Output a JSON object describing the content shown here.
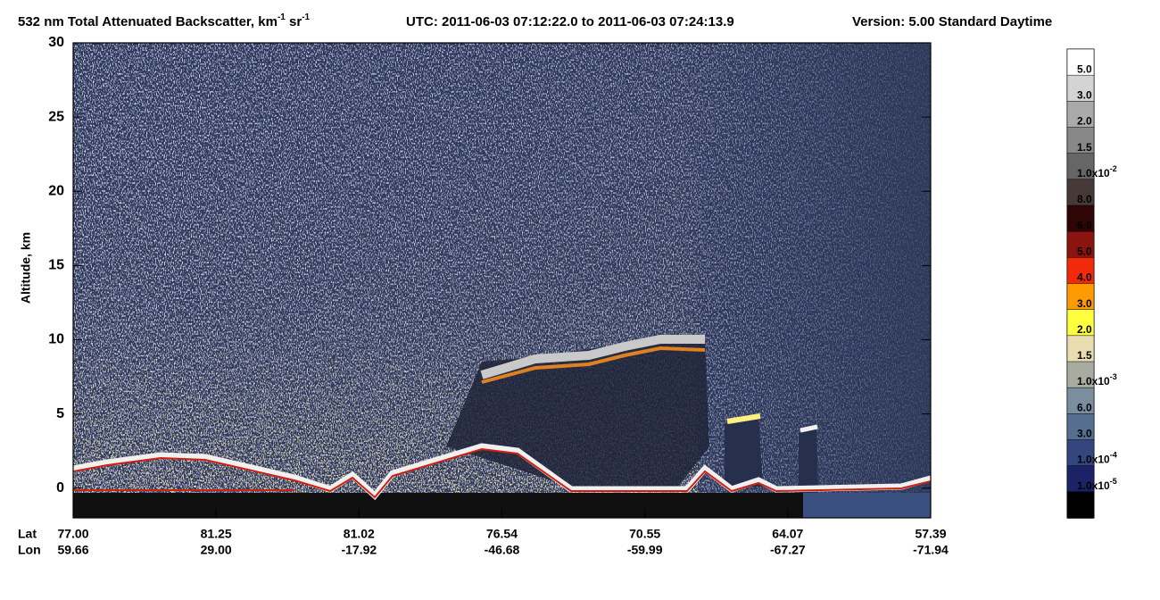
{
  "chart_data": {
    "type": "heatmap",
    "title": [
      "532 nm Total Attenuated Backscatter, km",
      "-1",
      " sr",
      "-1"
    ],
    "utc": "UTC:  2011-06-03 07:12:22.0  to  2011-06-03 07:24:13.9",
    "version": "Version: 5.00  Standard  Daytime",
    "ylabel": "Altitude, km",
    "ylim": [
      -2,
      30
    ],
    "yticks": [
      0,
      5,
      10,
      15,
      20,
      25,
      30
    ],
    "x_rows": [
      {
        "label": "Lat",
        "values": [
          "77.00",
          "81.25",
          "81.02",
          "76.54",
          "70.55",
          "64.07",
          "57.39"
        ]
      },
      {
        "label": "Lon",
        "values": [
          "59.66",
          "29.00",
          "-17.92",
          "-46.68",
          "-59.99",
          "-67.27",
          "-71.94"
        ]
      }
    ],
    "colorbar": {
      "colors": [
        "#ffffff",
        "#d4d4d4",
        "#aaaaaa",
        "#888888",
        "#666666",
        "#463a38",
        "#300505",
        "#8a1410",
        "#f02a0a",
        "#ff9a00",
        "#ffff40",
        "#e8dcb0",
        "#a8aca0",
        "#7a8ea0",
        "#566e90",
        "#34467e",
        "#1c2266",
        "#000000"
      ],
      "labels": [
        "5.0",
        "3.0",
        "2.0",
        "1.5",
        [
          "1.0x10",
          "-2"
        ],
        "8.0",
        "6.0",
        "5.0",
        "4.0",
        "3.0",
        "2.0",
        "1.5",
        [
          "1.0x10",
          "-3"
        ],
        "6.0",
        "3.0",
        [
          "1.0x10",
          "-4"
        ],
        [
          "1.0x10",
          "-5"
        ]
      ]
    }
  }
}
